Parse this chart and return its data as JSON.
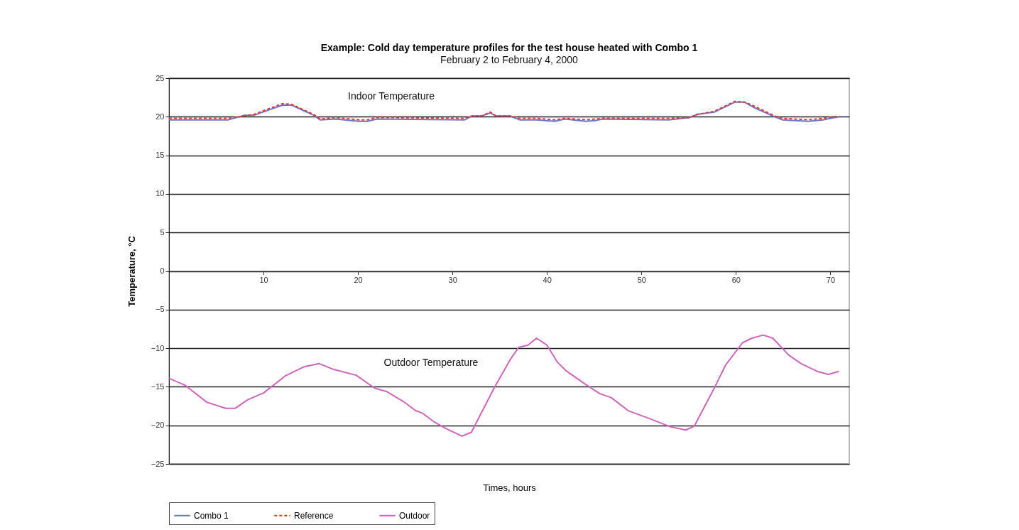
{
  "chart_data": {
    "type": "line",
    "title": "Example: Cold day temperature profiles for the test house heated with Combo 1",
    "subtitle": "February 2 to February 4, 2000",
    "xlabel": "Times, hours",
    "ylabel": "Temperature, °C",
    "xlim": [
      0,
      72
    ],
    "xticks": [
      10,
      20,
      30,
      40,
      50,
      60,
      70
    ],
    "ylim": [
      -25,
      25
    ],
    "yticks": [
      -25,
      -20,
      -15,
      -10,
      -5,
      0,
      5,
      10,
      15,
      20,
      25
    ],
    "grid": "y",
    "legend": "bottom",
    "marker": "none",
    "annotations": [
      "Indoor Temperature",
      "Outdoor Temperature"
    ],
    "series": [
      {
        "name": "Combo 1",
        "color": "#6677cc",
        "line_style": "solid",
        "x": [
          0,
          6.3,
          8,
          9,
          12,
          13,
          15.3,
          16,
          17.6,
          20.1,
          21,
          22,
          31.3,
          32.1,
          33.1,
          34,
          34.6,
          36.1,
          37.1,
          38.9,
          40.8,
          41.9,
          44.1,
          45.1,
          45.9,
          52.9,
          55.1,
          55.9,
          57.7,
          59.9,
          60.9,
          61.9,
          64.1,
          64.9,
          67.7,
          69.2,
          70.9
        ],
        "values": [
          19.6,
          19.6,
          20.2,
          20.2,
          21.5,
          21.5,
          20.2,
          19.6,
          19.7,
          19.4,
          19.4,
          19.7,
          19.6,
          20.1,
          20.1,
          20.5,
          20.1,
          20.1,
          19.6,
          19.6,
          19.4,
          19.7,
          19.4,
          19.5,
          19.7,
          19.6,
          19.9,
          20.3,
          20.6,
          21.9,
          21.9,
          21.2,
          20,
          19.6,
          19.4,
          19.6,
          20
        ]
      },
      {
        "name": "Reference",
        "color": "#ee3333",
        "line_style": "dashed",
        "x": [
          0,
          6.3,
          8,
          9,
          12,
          13,
          15.3,
          16,
          17.6,
          20.1,
          21,
          22,
          31.3,
          32.1,
          33.1,
          34,
          34.6,
          36.1,
          37.1,
          38.9,
          40.8,
          41.9,
          44.1,
          45.1,
          45.9,
          52.9,
          55.1,
          55.9,
          57.7,
          59.9,
          60.9,
          61.9,
          64.1,
          64.9,
          67.7,
          69.2,
          70.9
        ],
        "values": [
          19.8,
          19.8,
          20.1,
          20.3,
          21.7,
          21.6,
          20.3,
          19.7,
          19.9,
          19.6,
          19.6,
          19.9,
          19.8,
          20.1,
          20.1,
          20.6,
          20.1,
          20.1,
          19.8,
          19.8,
          19.6,
          19.8,
          19.6,
          19.7,
          19.8,
          19.8,
          19.9,
          20.3,
          20.7,
          22,
          21.9,
          21.4,
          20.1,
          19.8,
          19.6,
          19.8,
          20.1
        ]
      },
      {
        "name": "Outdoor",
        "color": "#cc66bb",
        "line_style": "solid",
        "x": [
          0,
          1.7,
          4,
          6,
          7,
          8.3,
          10,
          12.3,
          14.3,
          15.9,
          17.3,
          19.8,
          21.8,
          23,
          24.8,
          26.1,
          26.8,
          28,
          29.3,
          31,
          32,
          34.4,
          36.1,
          37,
          38,
          38.9,
          40,
          41.1,
          42.1,
          44.1,
          45.6,
          46.8,
          48.6,
          50.6,
          53.1,
          54.7,
          55.6,
          57.7,
          58.9,
          60.7,
          61.7,
          62.9,
          63.9,
          65.6,
          66.9,
          68.6,
          69.8,
          70.9
        ],
        "values": [
          -13.9,
          -14.8,
          -17,
          -17.8,
          -17.8,
          -16.7,
          -15.8,
          -13.6,
          -12.4,
          -12,
          -12.7,
          -13.5,
          -15.2,
          -15.6,
          -16.9,
          -18.1,
          -18.4,
          -19.5,
          -20.4,
          -21.4,
          -20.9,
          -15.2,
          -11.5,
          -9.9,
          -9.6,
          -8.7,
          -9.6,
          -11.8,
          -13,
          -14.7,
          -15.9,
          -16.4,
          -18.1,
          -19,
          -20.2,
          -20.6,
          -20.1,
          -15.2,
          -12.2,
          -9.3,
          -8.7,
          -8.3,
          -8.7,
          -10.9,
          -12,
          -13,
          -13.4,
          -13
        ]
      }
    ]
  }
}
